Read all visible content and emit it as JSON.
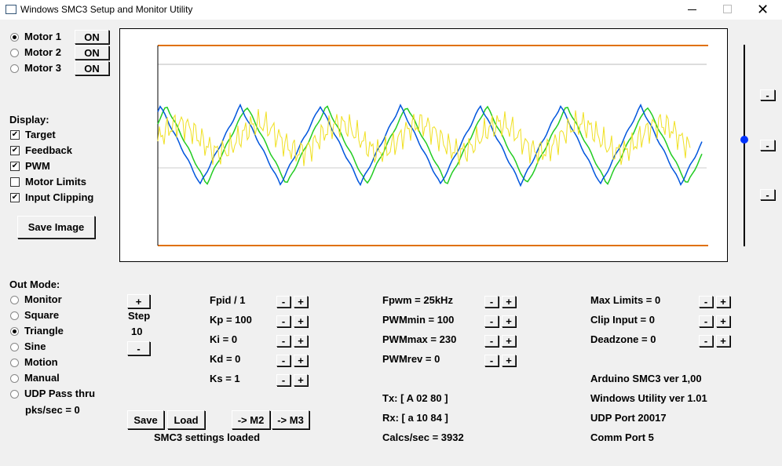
{
  "window": {
    "title": "Windows SMC3 Setup and Monitor Utility"
  },
  "motors": [
    {
      "label": "Motor 1",
      "button": "ON",
      "selected": true
    },
    {
      "label": "Motor 2",
      "button": "ON",
      "selected": false
    },
    {
      "label": "Motor 3",
      "button": "ON",
      "selected": false
    }
  ],
  "display": {
    "heading": "Display:",
    "options": [
      {
        "label": "Target",
        "checked": true
      },
      {
        "label": "Feedback",
        "checked": true
      },
      {
        "label": "PWM",
        "checked": true
      },
      {
        "label": "Motor Limits",
        "checked": false
      },
      {
        "label": "Input Clipping",
        "checked": true
      }
    ]
  },
  "save_image": "Save Image",
  "out_mode": {
    "heading": "Out Mode:",
    "options": [
      {
        "label": "Monitor",
        "selected": false
      },
      {
        "label": "Square",
        "selected": false
      },
      {
        "label": "Triangle",
        "selected": true
      },
      {
        "label": "Sine",
        "selected": false
      },
      {
        "label": "Motion",
        "selected": false
      },
      {
        "label": "Manual",
        "selected": false
      },
      {
        "label": "UDP Pass thru",
        "selected": false
      }
    ],
    "pks": "pks/sec = 0"
  },
  "adjust": {
    "minus": "-",
    "plus": "+"
  },
  "step": {
    "label": "Step",
    "value": 10
  },
  "params": [
    [
      "Fpid / 1",
      "Kp = 100",
      "Ki = 0",
      "Kd = 0",
      "Ks = 1"
    ],
    [
      "Fpwm = 25kHz",
      "PWMmin = 100",
      "PWMmax = 230",
      "PWMrev = 0"
    ],
    [
      "Max Limits = 0",
      "Clip Input = 0",
      "Deadzone = 0"
    ]
  ],
  "status": [
    "Tx: [ A 02 80 ]",
    "Rx: [ a 10 84 ]",
    "Calcs/sec = 3932"
  ],
  "info": [
    "Arduino SMC3 ver 1,00",
    "Windows Utility ver 1.01",
    "UDP Port 20017",
    "Comm Port 5"
  ],
  "buttons": [
    "Save",
    "Load",
    "-> M2",
    "-> M3"
  ],
  "message": "SMC3 settings loaded"
}
